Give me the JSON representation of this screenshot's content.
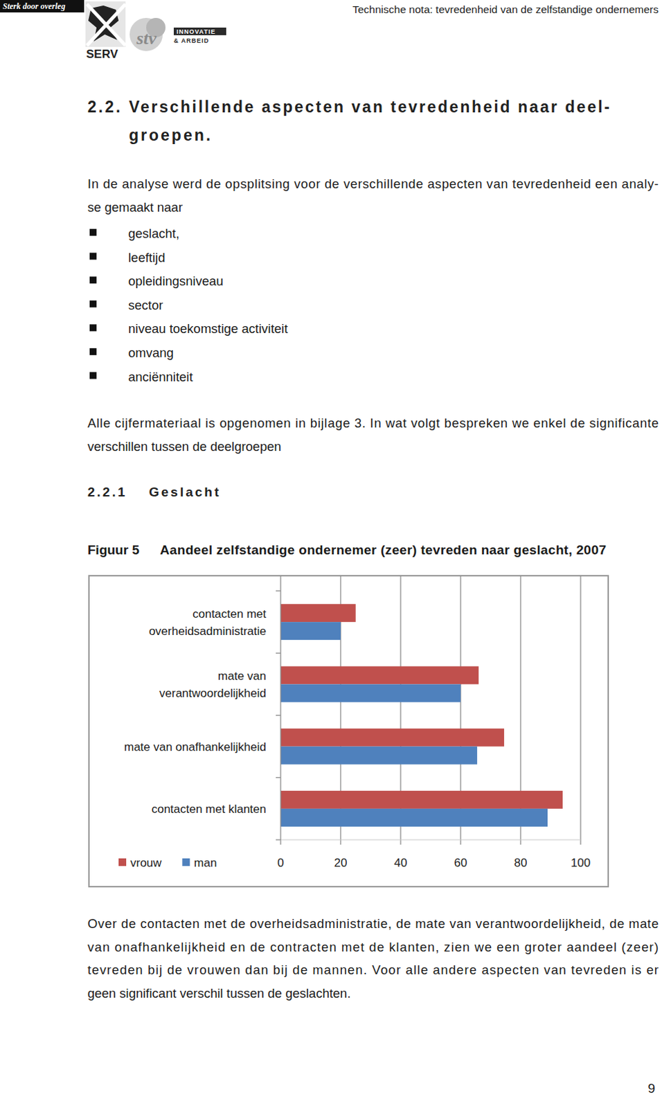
{
  "header": {
    "banner": "Sterk door overleg",
    "logo_serv": "SERV",
    "logo_stv": "stv",
    "logo_line1": "INNOVATIE",
    "logo_line2": "& ARBEID",
    "running_title": "Technische nota: tevredenheid van de zelfstandige ondernemers"
  },
  "section": {
    "number": "2.2.",
    "title_lines": [
      "Verschillende aspecten van tevredenheid naar deel-",
      "groepen."
    ]
  },
  "intro_lines": [
    "In de analyse werd de opsplitsing voor de verschillende aspecten van tevredenheid een analy-",
    "se gemaakt naar"
  ],
  "bullets": [
    "geslacht,",
    "leeftijd",
    "opleidingsniveau",
    "sector",
    "niveau toekomstige activiteit",
    "omvang",
    "anciënniteit"
  ],
  "note_lines": [
    "Alle cijfermateriaal is opgenomen in bijlage 3. In wat volgt bespreken we enkel de significante",
    "verschillen tussen de deelgroepen"
  ],
  "subsection": {
    "number": "2.2.1",
    "title": "Geslacht"
  },
  "figure": {
    "label": "Figuur 5",
    "caption": "Aandeel zelfstandige ondernemer (zeer) tevreden naar geslacht, 2007"
  },
  "chart_data": {
    "type": "bar",
    "orientation": "horizontal",
    "categories": [
      "contacten met overheidsadministratie",
      "mate van verantwoordelijkheid",
      "mate van onafhankelijkheid",
      "contacten met klanten"
    ],
    "series": [
      {
        "name": "vrouw",
        "color": "#c0504d",
        "values": [
          25,
          66,
          74.5,
          94
        ]
      },
      {
        "name": "man",
        "color": "#4f81bd",
        "values": [
          20,
          60,
          65.5,
          89
        ]
      }
    ],
    "xlim": [
      0,
      100
    ],
    "xticks": [
      0,
      20,
      40,
      60,
      80,
      100
    ],
    "grid": true,
    "legend": "bottom-left"
  },
  "conclusion_lines": [
    "Over de contacten met de overheidsadministratie, de mate van verantwoordelijkheid, de mate",
    "van onafhankelijkheid en de contracten met de klanten, zien we een groter aandeel (zeer)",
    "tevreden bij de vrouwen dan bij de mannen. Voor alle andere aspecten van tevreden is er",
    "geen significant verschil tussen de geslachten."
  ],
  "page_number": 9
}
